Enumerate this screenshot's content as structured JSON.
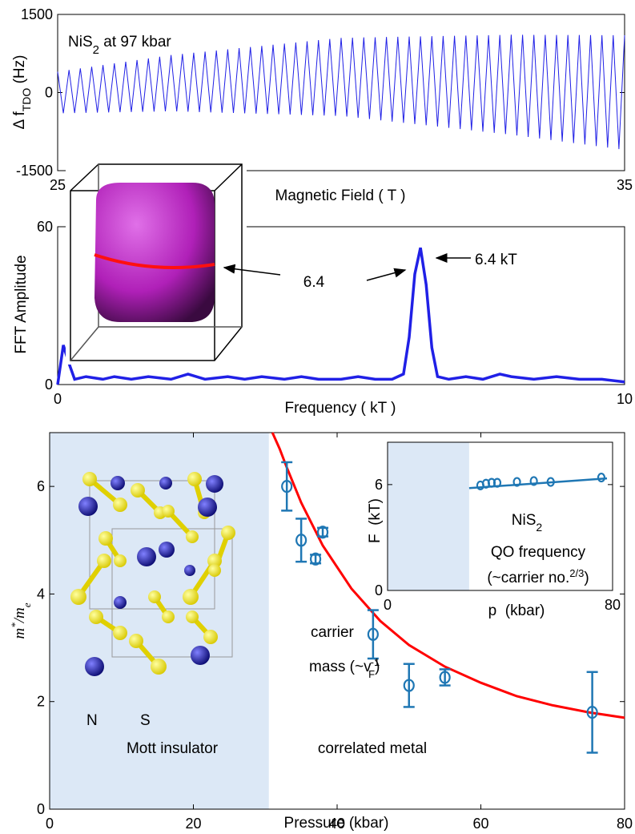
{
  "chart_data": [
    {
      "type": "line",
      "annotation": {
        "text": "NiS",
        "sub": "2",
        "rest": " at 97 kbar"
      },
      "ylabel": {
        "text": "Δ f",
        "sub": "TDO",
        "rest": " (Hz)"
      },
      "xlabel": "Magnetic Field ( T )",
      "x": [
        25,
        25.1,
        25.2,
        25.3,
        25.4,
        25.5,
        25.6,
        25.7,
        25.8,
        25.9,
        26,
        26.1,
        26.2,
        26.3,
        26.4,
        26.5,
        26.6,
        26.7,
        26.8,
        26.9,
        27,
        27.1,
        27.2,
        27.3,
        27.4,
        27.5,
        27.6,
        27.7,
        27.8,
        27.9,
        28,
        28.1,
        28.2,
        28.3,
        28.4,
        28.5,
        28.6,
        28.7,
        28.8,
        28.9,
        29,
        29.1,
        29.2,
        29.3,
        29.4,
        29.5,
        29.6,
        29.7,
        29.8,
        29.9,
        30,
        30.1,
        30.2,
        30.3,
        30.4,
        30.5,
        30.6,
        30.7,
        30.8,
        30.9,
        31,
        31.1,
        31.2,
        31.3,
        31.4,
        31.5,
        31.6,
        31.7,
        31.8,
        31.9,
        32,
        32.1,
        32.2,
        32.3,
        32.4,
        32.5,
        32.6,
        32.7,
        32.8,
        32.9,
        33,
        33.1,
        33.2,
        33.3,
        33.4,
        33.5,
        33.6,
        33.7,
        33.8,
        33.9,
        34,
        34.1,
        34.2,
        34.3,
        34.4,
        34.5,
        34.6,
        34.7,
        34.8,
        34.9,
        35
      ],
      "series": [
        {
          "color": "#2020e6",
          "values": [
            400,
            -397,
            434,
            -394,
            464,
            -390,
            496,
            -386,
            528,
            -382,
            560,
            -378,
            592,
            -374,
            624,
            -370,
            656,
            -366,
            688,
            -362,
            720,
            -363,
            742,
            -369,
            764,
            -375,
            786,
            -381,
            808,
            -387,
            830,
            -393,
            852,
            -399,
            874,
            -405,
            896,
            -411,
            918,
            -417,
            940,
            -423,
            962,
            -429,
            984,
            -435,
            1006,
            -441,
            1028,
            -447,
            1050,
            -462,
            1054,
            -486,
            1058,
            -510,
            1062,
            -534,
            1066,
            -558,
            1070,
            -582,
            1074,
            -606,
            1078,
            -630,
            1082,
            -654,
            1086,
            -678,
            1090,
            -702,
            1094,
            -726,
            1098,
            -750,
            1102,
            -774,
            1106,
            -798,
            1110,
            -825,
            1109,
            -854,
            1108,
            -883,
            1107,
            -912,
            1106,
            -941,
            1105,
            -970,
            1104,
            -999,
            1103,
            -1028,
            1102,
            -1057,
            1101,
            -1086,
            1100
          ]
        }
      ],
      "xlim": [
        25,
        35
      ],
      "xticks": [
        25,
        35
      ],
      "ylim": [
        -1500,
        1500
      ],
      "yticks": [
        -1500,
        0,
        1500
      ]
    },
    {
      "type": "line",
      "ylabel": "FFT Amplitude",
      "xlabel": "Frequency ( kT )",
      "annotations": [
        "6.4 kT",
        "6.4"
      ],
      "x": [
        0,
        0.1,
        0.2,
        0.3,
        0.5,
        0.8,
        1,
        1.3,
        1.6,
        2,
        2.3,
        2.6,
        3,
        3.3,
        3.6,
        4,
        4.3,
        4.6,
        5,
        5.3,
        5.6,
        5.9,
        6.1,
        6.2,
        6.3,
        6.4,
        6.5,
        6.6,
        6.7,
        6.9,
        7.2,
        7.5,
        7.8,
        8,
        8.4,
        8.8,
        9.2,
        9.6,
        10
      ],
      "series": [
        {
          "color": "#2020e6",
          "values": [
            0,
            15,
            8,
            2,
            3,
            2,
            3,
            2,
            3,
            2,
            4,
            2,
            3,
            2,
            3,
            2,
            3,
            2,
            2,
            3,
            2,
            2,
            4,
            18,
            42,
            52,
            38,
            14,
            3,
            2,
            3,
            2,
            4,
            3,
            2,
            3,
            2,
            2,
            1
          ]
        }
      ],
      "xlim": [
        0,
        10
      ],
      "xticks": [
        0,
        10
      ],
      "ylim": [
        0,
        60
      ],
      "yticks": [
        0,
        60
      ]
    },
    {
      "type": "scatter",
      "ylabel": {
        "text": "m",
        "sup": "*",
        "rest": "/m",
        "sub": "e"
      },
      "xlabel": "Pressure (kbar)",
      "annotations": {
        "carrier": {
          "line1": "carrier",
          "line2": "mass (~v",
          "sub": "F",
          "sup": "-1",
          "rest": ")"
        },
        "n": "N",
        "s": "S",
        "mott": "Mott insulator",
        "metal": "correlated metal"
      },
      "shade": {
        "range": [
          0,
          30.5
        ],
        "color": "#dce8f6"
      },
      "points": {
        "color": "#1f77b4",
        "x": [
          33,
          35,
          37,
          38,
          45,
          50,
          55,
          75.5
        ],
        "values": [
          6.0,
          5.0,
          4.65,
          5.15,
          3.25,
          2.3,
          2.45,
          1.8
        ],
        "errors": [
          0.45,
          0.4,
          0.08,
          0.08,
          0.45,
          0.4,
          0.15,
          0.75
        ]
      },
      "fit": {
        "color": "#ff0000",
        "x": [
          31,
          32,
          33,
          35,
          38,
          42,
          46,
          50,
          55,
          60,
          65,
          70,
          75,
          80
        ],
        "values": [
          7,
          6.7,
          6.35,
          5.7,
          4.9,
          4.1,
          3.5,
          3.05,
          2.65,
          2.35,
          2.1,
          1.93,
          1.8,
          1.7
        ]
      },
      "xlim": [
        0,
        80
      ],
      "xticks": [
        0,
        20,
        40,
        60,
        80
      ],
      "ylim": [
        0,
        7
      ],
      "yticks": [
        0,
        2,
        4,
        6
      ]
    },
    {
      "type": "scatter",
      "ylabel": "F  (kT)",
      "xlabel": "p  (kbar)",
      "annotations": {
        "compound": {
          "text": "NiS",
          "sub": "2"
        },
        "qo": "QO frequency",
        "carrier": {
          "text": "(~carrier no.",
          "sup": "2/3",
          "rest": ")"
        }
      },
      "shade": {
        "range": [
          0,
          29
        ],
        "color": "#dce8f6"
      },
      "points": {
        "color": "#1f77b4",
        "x": [
          33,
          35,
          37,
          39,
          46,
          52,
          58,
          76
        ],
        "values": [
          5.95,
          6.05,
          6.1,
          6.1,
          6.15,
          6.2,
          6.15,
          6.4
        ]
      },
      "fit": {
        "color": "#1f77b4",
        "x": [
          29,
          78
        ],
        "values": [
          5.8,
          6.35
        ]
      },
      "xlim": [
        0,
        80
      ],
      "xticks": [
        0,
        80
      ],
      "ylim": [
        0,
        8.4
      ],
      "yticks": [
        0,
        6
      ]
    }
  ]
}
